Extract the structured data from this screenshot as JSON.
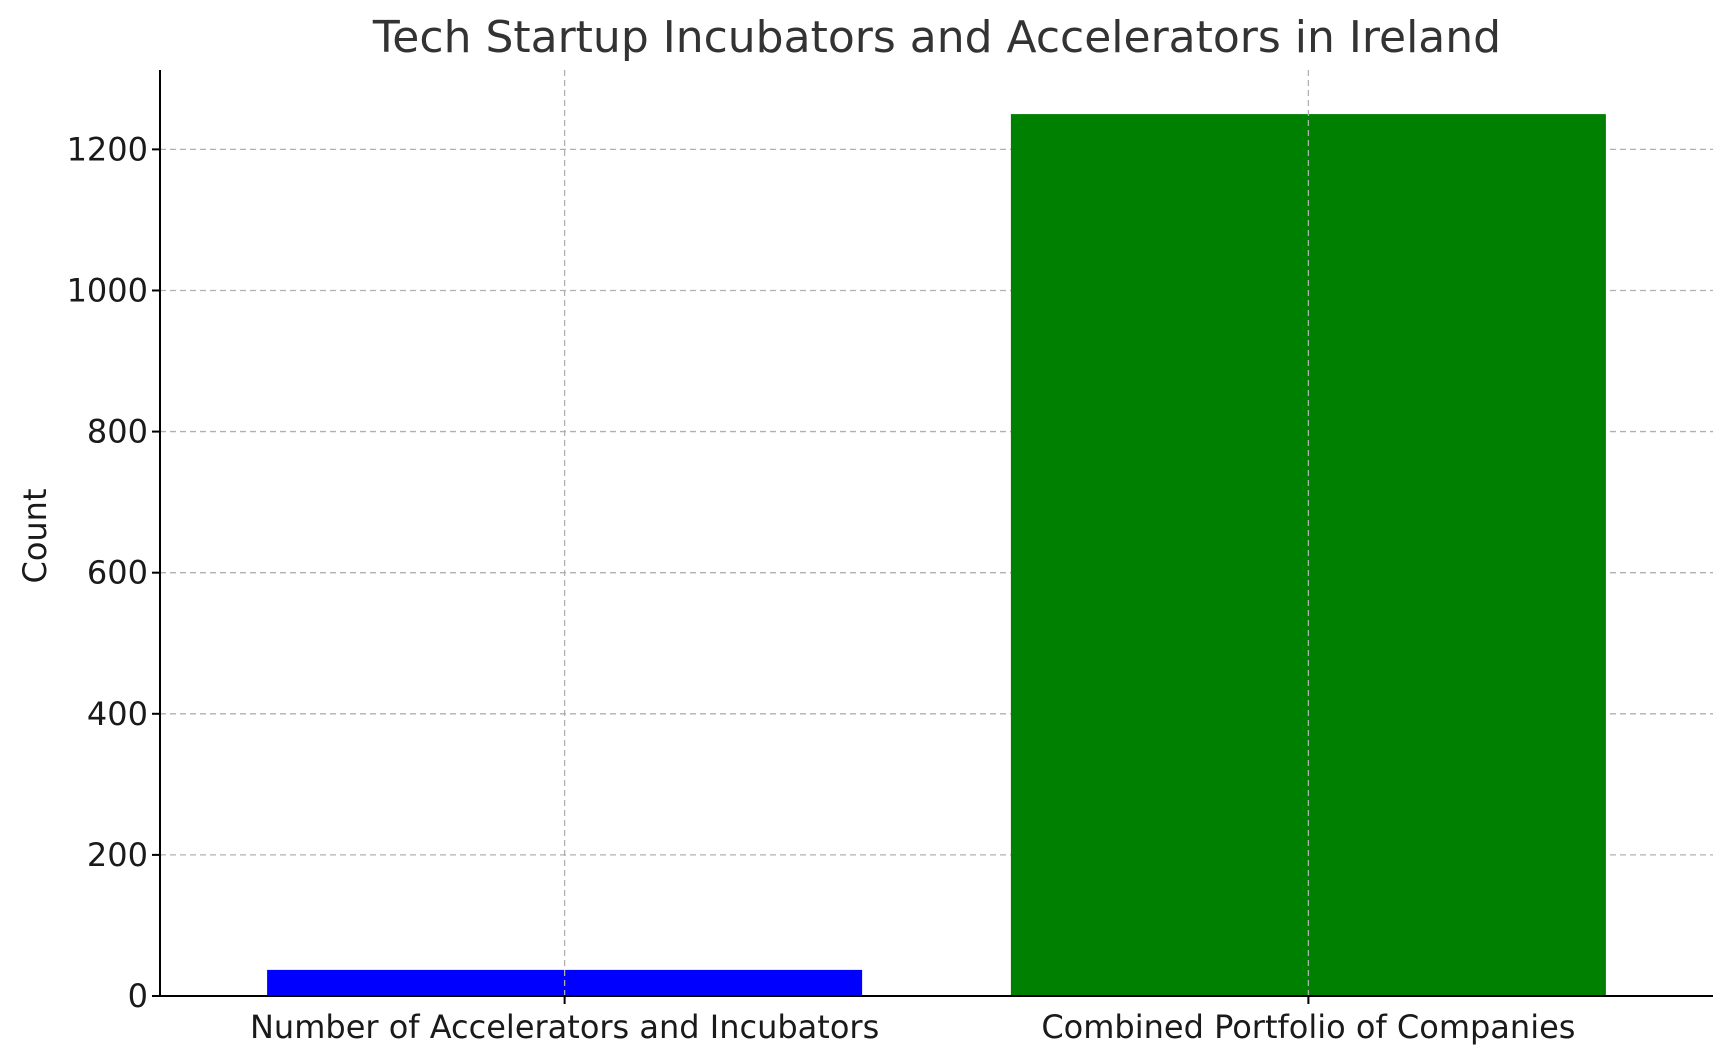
{
  "chart_data": {
    "type": "bar",
    "title": "Tech Startup Incubators and Accelerators in Ireland",
    "xlabel": "",
    "ylabel": "Count",
    "categories": [
      "Number of Accelerators and Incubators",
      "Combined Portfolio of Companies"
    ],
    "values": [
      37,
      1250
    ],
    "colors": [
      "#0000ff",
      "#008000"
    ],
    "ylim": [
      0,
      1312.5
    ],
    "yticks": [
      0,
      200,
      400,
      600,
      800,
      1000,
      1200
    ],
    "grid": true,
    "legend": "none"
  }
}
